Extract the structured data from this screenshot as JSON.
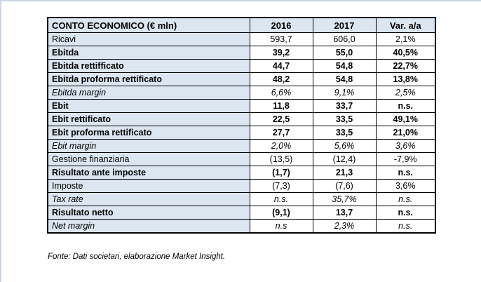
{
  "colors": {
    "header_fill": "#dce6f1",
    "label_column_fill": "#dce6f1",
    "grid_border": "#000000",
    "page_edge_line": "#ccd4e4",
    "background": "#ffffff"
  },
  "table": {
    "header": {
      "label": "CONTO ECONOMICO (€ mln)",
      "col2016": "2016",
      "col2017": "2017",
      "col_var": "Var. a/a"
    },
    "rows": [
      {
        "label": "Ricavi",
        "v2016": "593,7",
        "v2017": "606,0",
        "var": "2,1%",
        "style": "regular"
      },
      {
        "label": "Ebitda",
        "v2016": "39,2",
        "v2017": "55,0",
        "var": "40,5%",
        "style": "bold"
      },
      {
        "label": "Ebitda rettifficato",
        "v2016": "44,7",
        "v2017": "54,8",
        "var": "22,7%",
        "style": "bold"
      },
      {
        "label": "Ebitda proforma rettificato",
        "v2016": "48,2",
        "v2017": "54,8",
        "var": "13,8%",
        "style": "bold"
      },
      {
        "label": "Ebitda margin",
        "v2016": "6,6%",
        "v2017": "9,1%",
        "var": "2,5%",
        "style": "italic"
      },
      {
        "label": "Ebit",
        "v2016": "11,8",
        "v2017": "33,7",
        "var": "n.s.",
        "style": "bold"
      },
      {
        "label": "Ebit rettificato",
        "v2016": "22,5",
        "v2017": "33,5",
        "var": "49,1%",
        "style": "bold"
      },
      {
        "label": "Ebit proforma rettificato",
        "v2016": "27,7",
        "v2017": "33,5",
        "var": "21,0%",
        "style": "bold"
      },
      {
        "label": "Ebit margin",
        "v2016": "2,0%",
        "v2017": "5,6%",
        "var": "3,6%",
        "style": "italic"
      },
      {
        "label": "Gestione finanziaria",
        "v2016": "(13,5)",
        "v2017": "(12,4)",
        "var": "-7,9%",
        "style": "regular"
      },
      {
        "label": "Risultato ante imposte",
        "v2016": "(1,7)",
        "v2017": "21,3",
        "var": "n.s.",
        "style": "bold"
      },
      {
        "label": "Imposte",
        "v2016": "(7,3)",
        "v2017": "(7,6)",
        "var": "3,6%",
        "style": "regular"
      },
      {
        "label": "Tax rate",
        "v2016": "n.s.",
        "v2017": "35,7%",
        "var": "n.s.",
        "style": "italic"
      },
      {
        "label": "Risultato netto",
        "v2016": "(9,1)",
        "v2017": "13,7",
        "var": "n.s.",
        "style": "bold"
      },
      {
        "label": "Net margin",
        "v2016": "n.s",
        "v2017": "2,3%",
        "var": "n.s.",
        "style": "italic"
      }
    ]
  },
  "fonte": "Fonte: Dati societari, elaborazione Market Insight."
}
